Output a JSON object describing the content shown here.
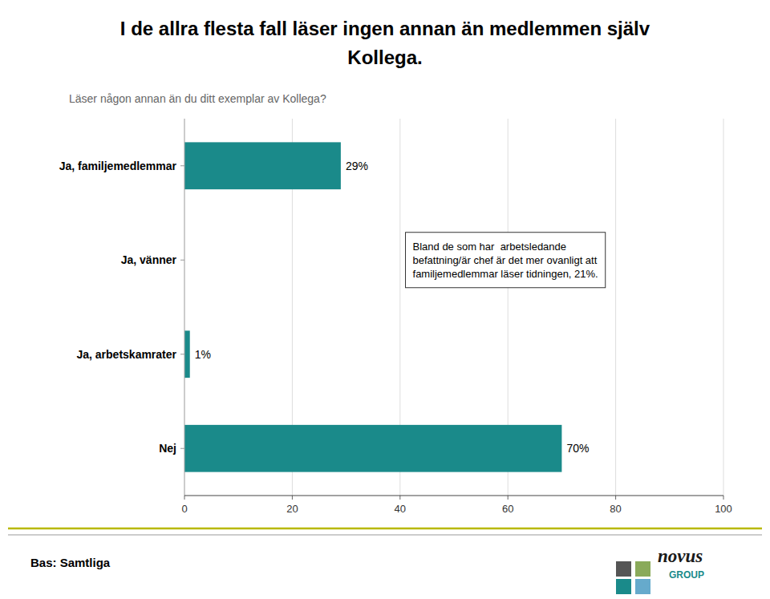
{
  "chart_data": {
    "type": "bar",
    "orientation": "horizontal",
    "title": "I de allra flesta fall läser ingen annan än medlemmen själv\nKollega.",
    "subtitle": "Läser någon annan än du ditt exemplar av Kollega?",
    "categories": [
      "Nej",
      "Ja, arbetskamrater",
      "Ja, vänner",
      "Ja, familjemedlemmar"
    ],
    "values": [
      70,
      1,
      0,
      29
    ],
    "value_labels": [
      "70%",
      "1%",
      null,
      "29%"
    ],
    "data_labels": true,
    "color": "#1a8a8a",
    "xlim": [
      0,
      100
    ],
    "xticks": [
      0,
      20,
      40,
      60,
      80,
      100
    ],
    "grid": true,
    "annotations": [
      {
        "text": "Bland de som har  arbetsledande\nbefattning/är chef är det mer ovanligt att\nfamiljemedlemmar läser tidningen, 21%.",
        "x": 41,
        "y": "Ja, vänner"
      }
    ],
    "footnote": "Bas: Samtliga",
    "logo": [
      "novus",
      "GROUP"
    ]
  }
}
